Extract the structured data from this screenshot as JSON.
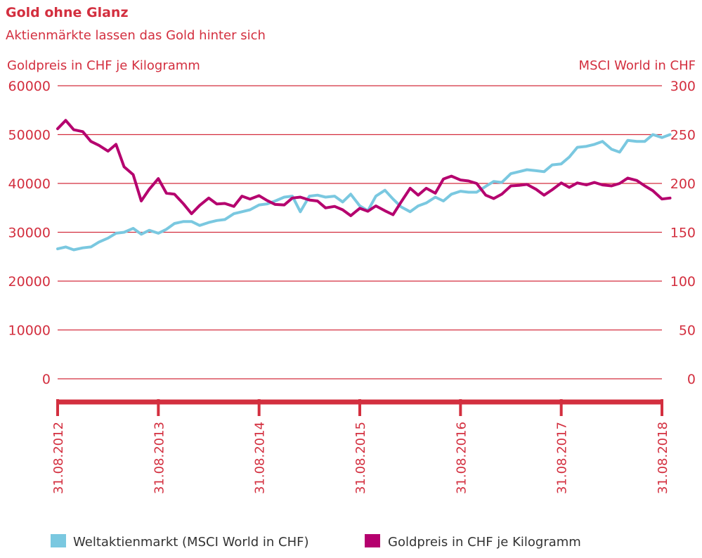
{
  "colors": {
    "accent": "#d32f3f",
    "msci": "#7ac8e0",
    "gold": "#b5006e",
    "text": "#333333"
  },
  "chart_data": {
    "type": "line",
    "title": "Gold ohne Glanz",
    "subtitle": "Aktienmärkte lassen das Gold hinter sich",
    "ylabel_left": "Goldpreis in CHF je Kilogramm",
    "ylabel_right": "MSCI World in CHF",
    "ylim_left": [
      0,
      60000
    ],
    "ylim_right": [
      0,
      300
    ],
    "yticks_left": [
      "0",
      "10000",
      "20000",
      "30000",
      "40000",
      "50000",
      "60000"
    ],
    "yticks_right": [
      "0",
      "50",
      "100",
      "150",
      "200",
      "250",
      "300"
    ],
    "x_ticks": [
      "31.08.2012",
      "31.08.2013",
      "31.08.2014",
      "31.08.2015",
      "31.08.2016",
      "31.08.2017",
      "31.08.2018"
    ],
    "grid": true,
    "legend_placement": "bottom",
    "series": [
      {
        "name": "Weltaktienmarkt (MSCI World in CHF)",
        "axis": "right",
        "color": "#7ac8e0",
        "points": [
          [
            2012.67,
            133
          ],
          [
            2012.75,
            135
          ],
          [
            2012.83,
            132
          ],
          [
            2012.92,
            134
          ],
          [
            2013.0,
            135
          ],
          [
            2013.08,
            140
          ],
          [
            2013.17,
            144
          ],
          [
            2013.25,
            149
          ],
          [
            2013.33,
            150
          ],
          [
            2013.42,
            154
          ],
          [
            2013.5,
            148
          ],
          [
            2013.58,
            152
          ],
          [
            2013.67,
            149
          ],
          [
            2013.75,
            153
          ],
          [
            2013.83,
            159
          ],
          [
            2013.92,
            161
          ],
          [
            2014.0,
            161
          ],
          [
            2014.08,
            157
          ],
          [
            2014.17,
            160
          ],
          [
            2014.25,
            162
          ],
          [
            2014.33,
            163
          ],
          [
            2014.42,
            169
          ],
          [
            2014.5,
            171
          ],
          [
            2014.58,
            173
          ],
          [
            2014.67,
            178
          ],
          [
            2014.75,
            179
          ],
          [
            2014.83,
            182
          ],
          [
            2014.92,
            186
          ],
          [
            2015.0,
            187
          ],
          [
            2015.08,
            171
          ],
          [
            2015.17,
            187
          ],
          [
            2015.25,
            188
          ],
          [
            2015.33,
            186
          ],
          [
            2015.42,
            187
          ],
          [
            2015.5,
            181
          ],
          [
            2015.58,
            189
          ],
          [
            2015.67,
            177
          ],
          [
            2015.75,
            172
          ],
          [
            2015.83,
            187
          ],
          [
            2015.92,
            193
          ],
          [
            2016.0,
            184
          ],
          [
            2016.08,
            176
          ],
          [
            2016.17,
            171
          ],
          [
            2016.25,
            177
          ],
          [
            2016.33,
            180
          ],
          [
            2016.42,
            186
          ],
          [
            2016.5,
            182
          ],
          [
            2016.58,
            189
          ],
          [
            2016.67,
            192
          ],
          [
            2016.75,
            191
          ],
          [
            2016.83,
            191
          ],
          [
            2016.92,
            197
          ],
          [
            2017.0,
            202
          ],
          [
            2017.08,
            201
          ],
          [
            2017.17,
            210
          ],
          [
            2017.25,
            212
          ],
          [
            2017.33,
            214
          ],
          [
            2017.42,
            213
          ],
          [
            2017.5,
            212
          ],
          [
            2017.58,
            219
          ],
          [
            2017.67,
            220
          ],
          [
            2017.75,
            227
          ],
          [
            2017.83,
            237
          ],
          [
            2017.92,
            238
          ],
          [
            2018.0,
            240
          ],
          [
            2018.08,
            243
          ],
          [
            2018.17,
            235
          ],
          [
            2018.25,
            232
          ],
          [
            2018.33,
            244
          ],
          [
            2018.42,
            243
          ],
          [
            2018.5,
            243
          ],
          [
            2018.58,
            250
          ],
          [
            2018.67,
            247
          ],
          [
            2018.75,
            250
          ]
        ]
      },
      {
        "name": "Goldpreis in CHF je Kilogramm",
        "axis": "left",
        "color": "#b5006e",
        "points": [
          [
            2012.67,
            51200
          ],
          [
            2012.75,
            52900
          ],
          [
            2012.83,
            51000
          ],
          [
            2012.92,
            50600
          ],
          [
            2013.0,
            48600
          ],
          [
            2013.08,
            47800
          ],
          [
            2013.17,
            46600
          ],
          [
            2013.25,
            48000
          ],
          [
            2013.33,
            43400
          ],
          [
            2013.42,
            41800
          ],
          [
            2013.5,
            36400
          ],
          [
            2013.58,
            38800
          ],
          [
            2013.67,
            41000
          ],
          [
            2013.75,
            38000
          ],
          [
            2013.83,
            37800
          ],
          [
            2013.92,
            35800
          ],
          [
            2014.0,
            33800
          ],
          [
            2014.08,
            35500
          ],
          [
            2014.17,
            37000
          ],
          [
            2014.25,
            35800
          ],
          [
            2014.33,
            35900
          ],
          [
            2014.42,
            35300
          ],
          [
            2014.5,
            37400
          ],
          [
            2014.58,
            36800
          ],
          [
            2014.67,
            37500
          ],
          [
            2014.75,
            36500
          ],
          [
            2014.83,
            35700
          ],
          [
            2014.92,
            35600
          ],
          [
            2015.0,
            37000
          ],
          [
            2015.08,
            37200
          ],
          [
            2015.17,
            36600
          ],
          [
            2015.25,
            36400
          ],
          [
            2015.33,
            35000
          ],
          [
            2015.42,
            35300
          ],
          [
            2015.5,
            34600
          ],
          [
            2015.58,
            33400
          ],
          [
            2015.67,
            34900
          ],
          [
            2015.75,
            34300
          ],
          [
            2015.83,
            35400
          ],
          [
            2015.92,
            34400
          ],
          [
            2016.0,
            33600
          ],
          [
            2016.08,
            36200
          ],
          [
            2016.17,
            39000
          ],
          [
            2016.25,
            37600
          ],
          [
            2016.33,
            39000
          ],
          [
            2016.42,
            38000
          ],
          [
            2016.5,
            40900
          ],
          [
            2016.58,
            41500
          ],
          [
            2016.67,
            40700
          ],
          [
            2016.75,
            40500
          ],
          [
            2016.83,
            40000
          ],
          [
            2016.92,
            37600
          ],
          [
            2017.0,
            36900
          ],
          [
            2017.08,
            37800
          ],
          [
            2017.17,
            39500
          ],
          [
            2017.25,
            39600
          ],
          [
            2017.33,
            39800
          ],
          [
            2017.42,
            38800
          ],
          [
            2017.5,
            37600
          ],
          [
            2017.58,
            38700
          ],
          [
            2017.67,
            40100
          ],
          [
            2017.75,
            39200
          ],
          [
            2017.83,
            40100
          ],
          [
            2017.92,
            39700
          ],
          [
            2018.0,
            40200
          ],
          [
            2018.08,
            39700
          ],
          [
            2018.17,
            39500
          ],
          [
            2018.25,
            40000
          ],
          [
            2018.33,
            41100
          ],
          [
            2018.42,
            40600
          ],
          [
            2018.5,
            39500
          ],
          [
            2018.58,
            38500
          ],
          [
            2018.67,
            36800
          ],
          [
            2018.75,
            37000
          ]
        ]
      }
    ]
  }
}
